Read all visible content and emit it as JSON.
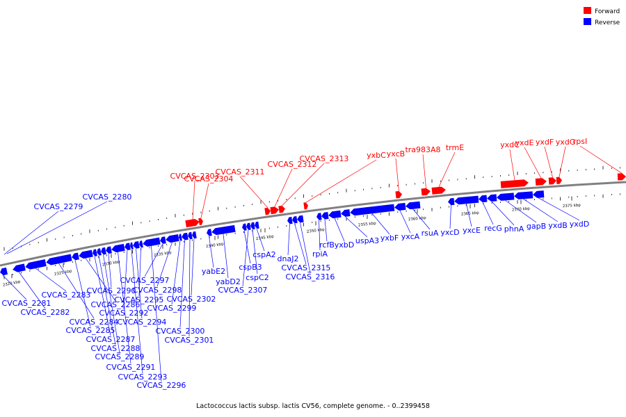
{
  "colors": {
    "forward": "#ff0000",
    "reverse": "#0000ff",
    "backbone": "#808080"
  },
  "legend": {
    "forward": "Forward",
    "reverse": "Reverse"
  },
  "caption": "Lactococcus lactis subsp. lactis CV56, complete genome. - 0..2399458",
  "ticks": [
    "2320 kbp",
    "2325 kbp",
    "2330 kbp",
    "2335 kbp",
    "2340 kbp",
    "2345 kbp",
    "2350 kbp",
    "2355 kbp",
    "2360 kbp",
    "2365 kbp",
    "2370 kbp",
    "2375 kbp"
  ],
  "forward_genes": [
    "CVCAS_2303",
    "CVCAS_2304",
    "CVCAS_2311",
    "CVCAS_2312",
    "CVCAS_2313",
    "yxbC",
    "yxcB",
    "tra983A8",
    "trmE",
    "yxdC",
    "yxdE",
    "yxdF",
    "yxdG",
    "rpsI"
  ],
  "reverse_genes_above": [
    "CVCAS_2279",
    "CVCAS_2280"
  ],
  "reverse_genes_below": [
    "CVCAS_2281",
    "CVCAS_2282",
    "CVCAS_2283",
    "CVCAS_2284",
    "CVCAS_2285",
    "CVCAS_2286",
    "CVCAS_2287",
    "CVCAS_2288",
    "CVCAS_2289",
    "CVCAS_2290",
    "CVCAS_2291",
    "CVCAS_2292",
    "CVCAS_2293",
    "CVCAS_2294",
    "CVCAS_2295",
    "CVCAS_2296",
    "CVCAS_2297",
    "CVCAS_2298",
    "CVCAS_2299",
    "CVCAS_2300",
    "CVCAS_2301",
    "CVCAS_2302",
    "yabE2",
    "yabD2",
    "cspB3",
    "CVCAS_2307",
    "cspC2",
    "cspA2",
    "dnaJ2",
    "CVCAS_2315",
    "CVCAS_2316",
    "rpiA",
    "rcfB",
    "yxbD",
    "uspA3",
    "yxbF",
    "yxcA",
    "rsuA",
    "yxcD",
    "yxcE",
    "recG",
    "phnA",
    "gapB",
    "yxdB",
    "yxdD"
  ]
}
